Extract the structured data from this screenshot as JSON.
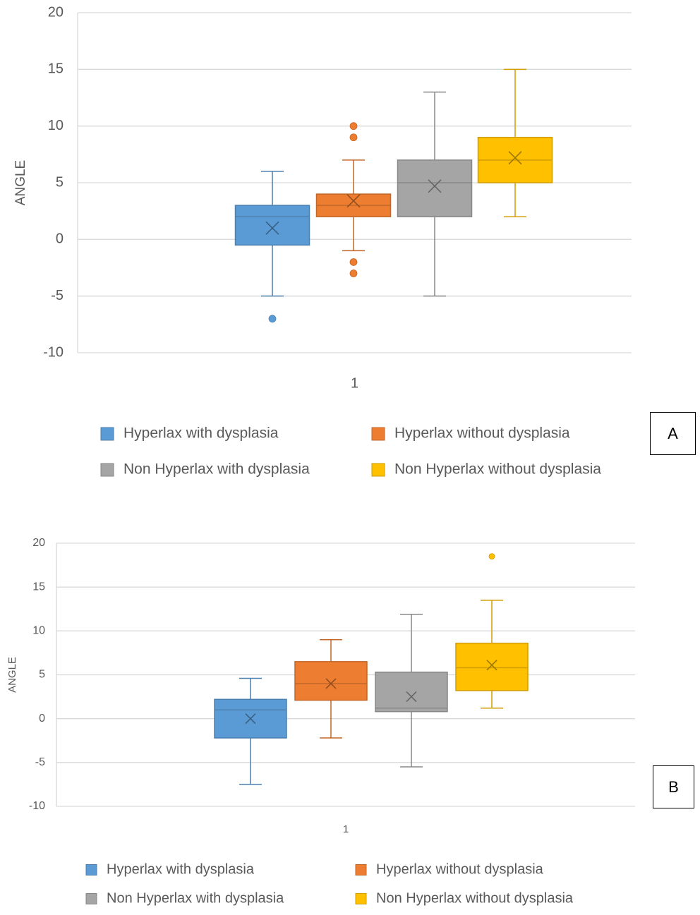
{
  "chart_data": [
    {
      "type": "box",
      "ylabel": "ANGLE",
      "xlabel": "",
      "ylim": [
        -10,
        20
      ],
      "yticks": [
        20,
        15,
        10,
        5,
        0,
        -5,
        -10
      ],
      "x_tick_label": "1",
      "legend_position": "bottom",
      "grid": true,
      "panel_label": "A",
      "series": [
        {
          "name": "Hyperlax with dysplasia",
          "color": "#5B9BD5",
          "min": -5,
          "q1": -0.5,
          "median": 2,
          "q3": 3,
          "max": 6,
          "mean": 1,
          "outliers": [
            -7
          ]
        },
        {
          "name": "Hyperlax without dysplasia",
          "color": "#ED7D31",
          "min": -1,
          "q1": 2,
          "median": 3,
          "q3": 4,
          "max": 7,
          "mean": 3.4,
          "outliers": [
            10,
            9,
            -2,
            -3
          ]
        },
        {
          "name": "Non Hyperlax with dysplasia",
          "color": "#A5A5A5",
          "min": -5,
          "q1": 2,
          "median": 5,
          "q3": 7,
          "max": 13,
          "mean": 4.7,
          "outliers": []
        },
        {
          "name": "Non Hyperlax without dysplasia",
          "color": "#FFC000",
          "min": 2,
          "q1": 5,
          "median": 7,
          "q3": 9,
          "max": 15,
          "mean": 7.2,
          "outliers": []
        }
      ]
    },
    {
      "type": "box",
      "ylabel": "ANGLE",
      "xlabel": "",
      "ylim": [
        -10,
        20
      ],
      "yticks": [
        20,
        15,
        10,
        5,
        0,
        -5,
        -10
      ],
      "x_tick_label": "1",
      "legend_position": "bottom",
      "grid": true,
      "panel_label": "B",
      "series": [
        {
          "name": "Hyperlax with dysplasia",
          "color": "#5B9BD5",
          "min": -7.5,
          "q1": -2.2,
          "median": 1,
          "q3": 2.2,
          "max": 4.6,
          "mean": 0,
          "outliers": []
        },
        {
          "name": "Hyperlax without dysplasia",
          "color": "#ED7D31",
          "min": -2.2,
          "q1": 2.1,
          "median": 4,
          "q3": 6.5,
          "max": 9,
          "mean": 4,
          "outliers": []
        },
        {
          "name": "Non Hyperlax with dysplasia",
          "color": "#A5A5A5",
          "min": -5.5,
          "q1": 0.8,
          "median": 1.2,
          "q3": 5.3,
          "max": 11.9,
          "mean": 2.5,
          "outliers": []
        },
        {
          "name": "Non Hyperlax without dysplasia",
          "color": "#FFC000",
          "min": 1.2,
          "q1": 3.2,
          "median": 5.8,
          "q3": 8.6,
          "max": 13.5,
          "mean": 6.1,
          "outliers": [
            18.5
          ]
        }
      ]
    }
  ]
}
